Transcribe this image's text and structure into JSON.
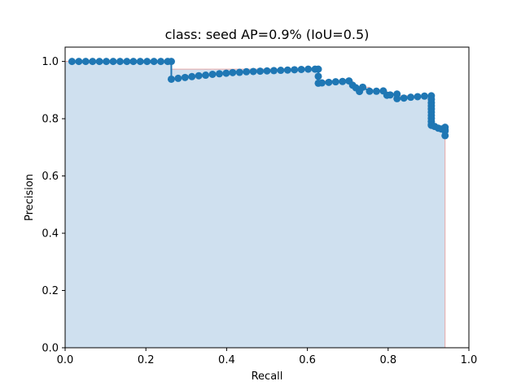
{
  "chart_data": {
    "type": "line",
    "title": "class: seed AP=0.9% (IoU=0.5)",
    "xlabel": "Recall",
    "ylabel": "Precision",
    "xlim": [
      0,
      1
    ],
    "ylim": [
      0,
      1.05
    ],
    "xticks": [
      "0.0",
      "0.2",
      "0.4",
      "0.6",
      "0.8",
      "1.0"
    ],
    "yticks": [
      "0.0",
      "0.2",
      "0.4",
      "0.6",
      "0.8",
      "1.0"
    ],
    "grid": false,
    "colors": {
      "points": "#1f77b4",
      "fill": "#cfe0ef",
      "envelope": "#e8a8a8"
    },
    "series": [
      {
        "x": [
          0.017,
          0.034,
          0.051,
          0.068,
          0.085,
          0.102,
          0.119,
          0.136,
          0.153,
          0.169,
          0.186,
          0.203,
          0.22,
          0.237,
          0.254,
          0.263,
          0.263,
          0.28,
          0.297,
          0.314,
          0.331,
          0.348,
          0.365,
          0.382,
          0.399,
          0.415,
          0.432,
          0.449,
          0.466,
          0.483,
          0.5,
          0.517,
          0.534,
          0.551,
          0.568,
          0.585,
          0.602,
          0.619,
          0.627,
          0.627,
          0.627,
          0.636,
          0.653,
          0.67,
          0.687,
          0.703,
          0.712,
          0.72,
          0.729,
          0.737,
          0.754,
          0.771,
          0.788,
          0.797,
          0.805,
          0.822,
          0.822,
          0.839,
          0.856,
          0.873,
          0.89,
          0.907,
          0.907,
          0.907,
          0.907,
          0.907,
          0.907,
          0.907,
          0.907,
          0.907,
          0.907,
          0.907,
          0.915,
          0.924,
          0.932,
          0.941,
          0.941,
          0.941,
          0.941
        ],
        "y": [
          1.0,
          1.0,
          1.0,
          1.0,
          1.0,
          1.0,
          1.0,
          1.0,
          1.0,
          1.0,
          1.0,
          1.0,
          1.0,
          1.0,
          1.0,
          1.0,
          0.938,
          0.941,
          0.944,
          0.947,
          0.95,
          0.952,
          0.955,
          0.957,
          0.959,
          0.961,
          0.962,
          0.964,
          0.965,
          0.966,
          0.967,
          0.968,
          0.969,
          0.97,
          0.971,
          0.972,
          0.973,
          0.973,
          0.973,
          0.948,
          0.924,
          0.925,
          0.927,
          0.929,
          0.93,
          0.932,
          0.917,
          0.908,
          0.895,
          0.91,
          0.896,
          0.896,
          0.897,
          0.882,
          0.883,
          0.886,
          0.87,
          0.872,
          0.875,
          0.877,
          0.879,
          0.88,
          0.868,
          0.856,
          0.845,
          0.834,
          0.823,
          0.812,
          0.801,
          0.79,
          0.779,
          0.777,
          0.773,
          0.767,
          0.764,
          0.761,
          0.77,
          0.757,
          0.741
        ]
      }
    ]
  }
}
